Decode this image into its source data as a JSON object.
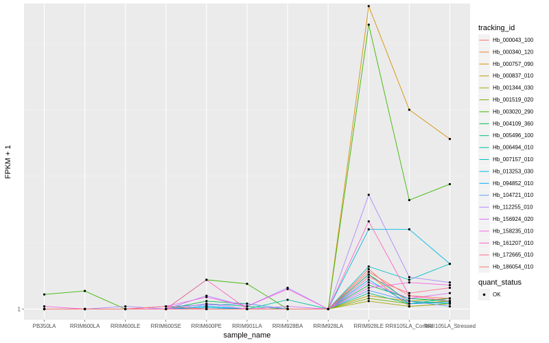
{
  "chart_data": {
    "type": "line",
    "xlabel": "sample_name",
    "ylabel": "FPKM + 1",
    "x": [
      "PB350LA",
      "RRIM600LA",
      "RRIM600LE",
      "RRIM600SE",
      "RRIM600PE",
      "RRIM901LA",
      "RRIM928BA",
      "RRIM928LA",
      "RRIM928LE",
      "RRII105LA_Control",
      "RRII105LA_Stressed"
    ],
    "x_tick_labels": [
      "PB350LA",
      "RRIM600LA",
      "RRIM600LE",
      "RRIM600SE",
      "RRIM600PE",
      "RRIM901LA",
      "RRIM928BA",
      "RRIM928LA",
      "RRIM928LE",
      "RRII105LA_Control",
      "RRII105LA_Stressed"
    ],
    "y_tick_labels": [
      "1"
    ],
    "ylim": [
      0.96,
      2.15
    ],
    "grid": true,
    "legend_position": "right",
    "color_legend_title": "tracking_id",
    "point_legend_title": "quant_status",
    "point_legend_label": "OK",
    "series": [
      {
        "name": "Hb_000043_100",
        "color": "#F8766D",
        "values": [
          1,
          1,
          1,
          1,
          1,
          1,
          1,
          1,
          1.15,
          1.02,
          1.03
        ]
      },
      {
        "name": "Hb_000340_120",
        "color": "#EA8331",
        "values": [
          1,
          1,
          1,
          1,
          1,
          1,
          1,
          1,
          1.13,
          1.01,
          1.02
        ]
      },
      {
        "name": "Hb_000757_090",
        "color": "#D89000",
        "values": [
          1,
          1,
          1,
          1,
          1,
          1,
          1,
          1,
          2.14,
          1.75,
          1.64
        ]
      },
      {
        "name": "Hb_000837_010",
        "color": "#C09B00",
        "values": [
          1,
          1,
          1,
          1,
          1,
          1,
          1,
          1,
          1.05,
          1.03,
          1.04
        ]
      },
      {
        "name": "Hb_001344_030",
        "color": "#A3A500",
        "values": [
          1,
          1,
          1,
          1,
          1,
          1,
          1,
          1,
          1.03,
          1.01,
          1.02
        ]
      },
      {
        "name": "Hb_001519_020",
        "color": "#7CAE00",
        "values": [
          1,
          1,
          1,
          1,
          1,
          1,
          1,
          1,
          1.04,
          1.02,
          1.03
        ]
      },
      {
        "name": "Hb_003020_290",
        "color": "#39B600",
        "values": [
          1.055,
          1.068,
          1,
          1,
          1.11,
          1.095,
          1,
          1,
          2.07,
          1.41,
          1.47
        ]
      },
      {
        "name": "Hb_004109_360",
        "color": "#00BB4E",
        "values": [
          1,
          1,
          1,
          1,
          1.03,
          1.02,
          1,
          1,
          1.09,
          1.04,
          1.03
        ]
      },
      {
        "name": "Hb_005496_100",
        "color": "#00BF7D",
        "values": [
          1,
          1,
          1,
          1,
          1.02,
          1.01,
          1,
          1,
          1.06,
          1.02,
          1.04
        ]
      },
      {
        "name": "Hb_006494_010",
        "color": "#00C1A3",
        "values": [
          1,
          1,
          1,
          1,
          1.01,
          1,
          1.035,
          1,
          1.13,
          1.03,
          1.02
        ]
      },
      {
        "name": "Hb_007157_010",
        "color": "#00BFC4",
        "values": [
          1,
          1,
          1,
          1,
          1.01,
          1,
          1,
          1,
          1.16,
          1.11,
          1.17
        ]
      },
      {
        "name": "Hb_013253_030",
        "color": "#00B9E3",
        "values": [
          1,
          1,
          1,
          1,
          1.005,
          1,
          1,
          1,
          1.3,
          1.3,
          1.17
        ]
      },
      {
        "name": "Hb_094852_010",
        "color": "#00ADFA",
        "values": [
          1,
          1,
          1,
          1,
          1.01,
          1,
          1,
          1,
          1.11,
          1.02,
          1.025
        ]
      },
      {
        "name": "Hb_104721_010",
        "color": "#619CFF",
        "values": [
          1,
          1,
          1,
          1.01,
          1.015,
          1.02,
          1,
          1,
          1.07,
          1.03,
          1.01
        ]
      },
      {
        "name": "Hb_112255_010",
        "color": "#AE87FF",
        "values": [
          1,
          1,
          1.01,
          1,
          1.05,
          1.01,
          1.08,
          1,
          1.43,
          1.12,
          1.1
        ]
      },
      {
        "name": "Hb_156924_020",
        "color": "#DB72FB",
        "values": [
          1,
          1,
          1,
          1,
          1.02,
          1,
          1.01,
          1,
          1.1,
          1.04,
          1.06
        ]
      },
      {
        "name": "Hb_158235_010",
        "color": "#F564E3",
        "values": [
          1.01,
          1,
          1,
          1.01,
          1.045,
          1.01,
          1.075,
          1,
          1.08,
          1.1,
          1.09
        ]
      },
      {
        "name": "Hb_161207_010",
        "color": "#FF61C3",
        "values": [
          1,
          1,
          1,
          1,
          1.11,
          1,
          1,
          1,
          1.33,
          1.05,
          1.03
        ]
      },
      {
        "name": "Hb_172665_010",
        "color": "#FF6C91",
        "values": [
          1,
          1,
          1,
          1,
          1,
          1,
          1,
          1,
          1.12,
          1.06,
          1.08
        ]
      },
      {
        "name": "Hb_186054_010",
        "color": "#F8766D",
        "values": [
          1,
          1,
          1,
          1.01,
          1,
          1,
          1,
          1,
          1.14,
          1.05,
          1.04
        ]
      }
    ]
  }
}
